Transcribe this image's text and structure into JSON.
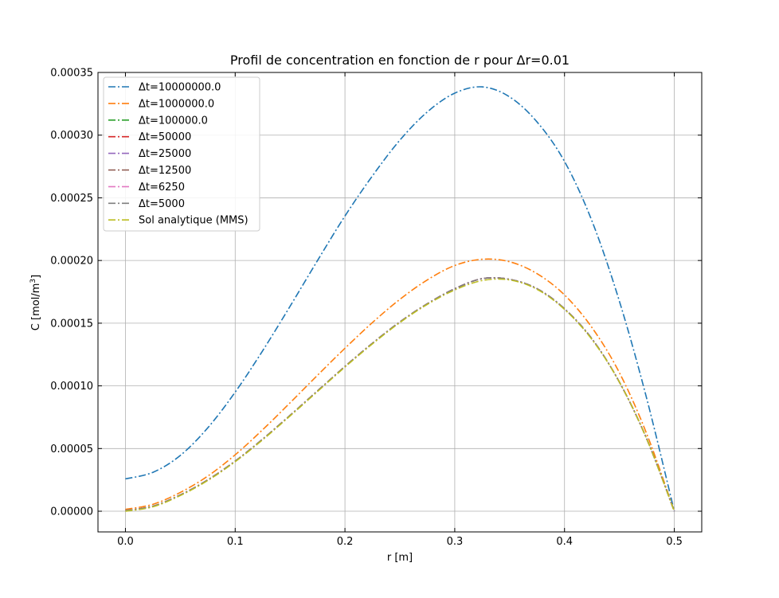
{
  "chart_data": {
    "type": "line",
    "title": "Profil de concentration en fonction de r pour Δr=0.01",
    "xlabel": "r [m]",
    "ylabel_main": "C [mol/m",
    "ylabel_sup": "3",
    "ylabel_end": "]",
    "xlim": [
      -0.025,
      0.525
    ],
    "ylim": [
      -1.65e-05,
      0.00035
    ],
    "xticks": [
      0.0,
      0.1,
      0.2,
      0.3,
      0.4,
      0.5
    ],
    "xtick_labels": [
      "0.0",
      "0.1",
      "0.2",
      "0.3",
      "0.4",
      "0.5"
    ],
    "yticks": [
      0,
      5e-05,
      0.0001,
      0.00015,
      0.0002,
      0.00025,
      0.0003,
      0.00035
    ],
    "ytick_labels": [
      "0.00000",
      "0.00005",
      "0.00010",
      "0.00015",
      "0.00020",
      "0.00025",
      "0.00030",
      "0.00035"
    ],
    "grid": true,
    "legend_position": "top-left",
    "line_style": "dash-dot",
    "x": [
      0.0,
      0.025,
      0.05,
      0.075,
      0.1,
      0.125,
      0.15,
      0.175,
      0.2,
      0.225,
      0.25,
      0.275,
      0.3,
      0.325,
      0.35,
      0.375,
      0.4,
      0.425,
      0.45,
      0.475,
      0.5
    ],
    "series": [
      {
        "name": "Δt=10000000.0",
        "color": "#1f77b4",
        "values": [
          2.58e-05,
          3.1e-05,
          4.45e-05,
          6.65e-05,
          9.5e-05,
          0.000128,
          0.0001635,
          0.0002,
          0.0002355,
          0.0002675,
          0.000296,
          0.0003185,
          0.0003335,
          0.0003385,
          0.0003305,
          0.0003105,
          0.000279,
          0.0002315,
          0.0001675,
          8.95e-05,
          0.0
        ]
      },
      {
        "name": "Δt=1000000.0",
        "color": "#ff7f0e",
        "values": [
          1.5e-06,
          5.5e-06,
          1.5e-05,
          2.8e-05,
          4.5e-05,
          6.5e-05,
          8.65e-05,
          0.0001085,
          0.00013,
          0.0001505,
          0.000169,
          0.0001845,
          0.000196,
          0.000201,
          0.000199,
          0.0001895,
          0.0001725,
          0.0001465,
          0.0001105,
          6.15e-05,
          0.0
        ]
      },
      {
        "name": "Δt=100000.0",
        "color": "#2ca02c",
        "values": [
          5e-07,
          4e-06,
          1.3e-05,
          2.5e-05,
          4e-05,
          5.75e-05,
          7.65e-05,
          9.6e-05,
          0.0001155,
          0.000134,
          0.000151,
          0.0001655,
          0.0001775,
          0.0001855,
          0.000185,
          0.0001775,
          0.0001615,
          0.0001375,
          0.000103,
          5.75e-05,
          0.0
        ]
      },
      {
        "name": "Δt=50000",
        "color": "#d62728",
        "values": [
          5e-07,
          4e-06,
          1.3e-05,
          2.5e-05,
          4e-05,
          5.75e-05,
          7.65e-05,
          9.6e-05,
          0.0001155,
          0.000134,
          0.000151,
          0.0001655,
          0.0001775,
          0.0001855,
          0.000185,
          0.0001775,
          0.0001615,
          0.0001375,
          0.000103,
          5.75e-05,
          0.0
        ]
      },
      {
        "name": "Δt=25000",
        "color": "#9467bd",
        "values": [
          5e-07,
          4e-06,
          1.3e-05,
          2.5e-05,
          4e-05,
          5.75e-05,
          7.65e-05,
          9.6e-05,
          0.0001155,
          0.000134,
          0.000151,
          0.0001655,
          0.0001775,
          0.0001855,
          0.000185,
          0.0001775,
          0.0001615,
          0.0001375,
          0.000103,
          5.75e-05,
          0.0
        ]
      },
      {
        "name": "Δt=12500",
        "color": "#8c564b",
        "values": [
          5e-07,
          4e-06,
          1.3e-05,
          2.5e-05,
          4e-05,
          5.75e-05,
          7.65e-05,
          9.6e-05,
          0.0001155,
          0.000134,
          0.000151,
          0.0001655,
          0.0001775,
          0.0001855,
          0.000185,
          0.0001775,
          0.0001615,
          0.0001375,
          0.000103,
          5.75e-05,
          0.0
        ]
      },
      {
        "name": "Δt=6250",
        "color": "#e377c2",
        "values": [
          5e-07,
          4e-06,
          1.3e-05,
          2.5e-05,
          4e-05,
          5.75e-05,
          7.65e-05,
          9.6e-05,
          0.0001155,
          0.000134,
          0.000151,
          0.0001655,
          0.0001775,
          0.0001855,
          0.000185,
          0.0001775,
          0.0001615,
          0.0001375,
          0.000103,
          5.75e-05,
          0.0
        ]
      },
      {
        "name": "Δt=5000",
        "color": "#7f7f7f",
        "values": [
          5e-07,
          4e-06,
          1.3e-05,
          2.5e-05,
          4e-05,
          5.75e-05,
          7.65e-05,
          9.6e-05,
          0.0001155,
          0.000134,
          0.000151,
          0.0001655,
          0.0001775,
          0.0001855,
          0.000185,
          0.0001775,
          0.0001615,
          0.0001375,
          0.000103,
          5.75e-05,
          0.0
        ]
      },
      {
        "name": "Sol analytique (MMS)",
        "color": "#bcbd22",
        "values": [
          0.0,
          3.5e-06,
          1.25e-05,
          2.45e-05,
          3.95e-05,
          5.7e-05,
          7.6e-05,
          9.55e-05,
          0.000115,
          0.0001335,
          0.0001505,
          0.000165,
          0.0001765,
          0.000184,
          0.0001845,
          0.000177,
          0.000161,
          0.000137,
          0.000103,
          5.75e-05,
          0.0
        ]
      }
    ]
  }
}
